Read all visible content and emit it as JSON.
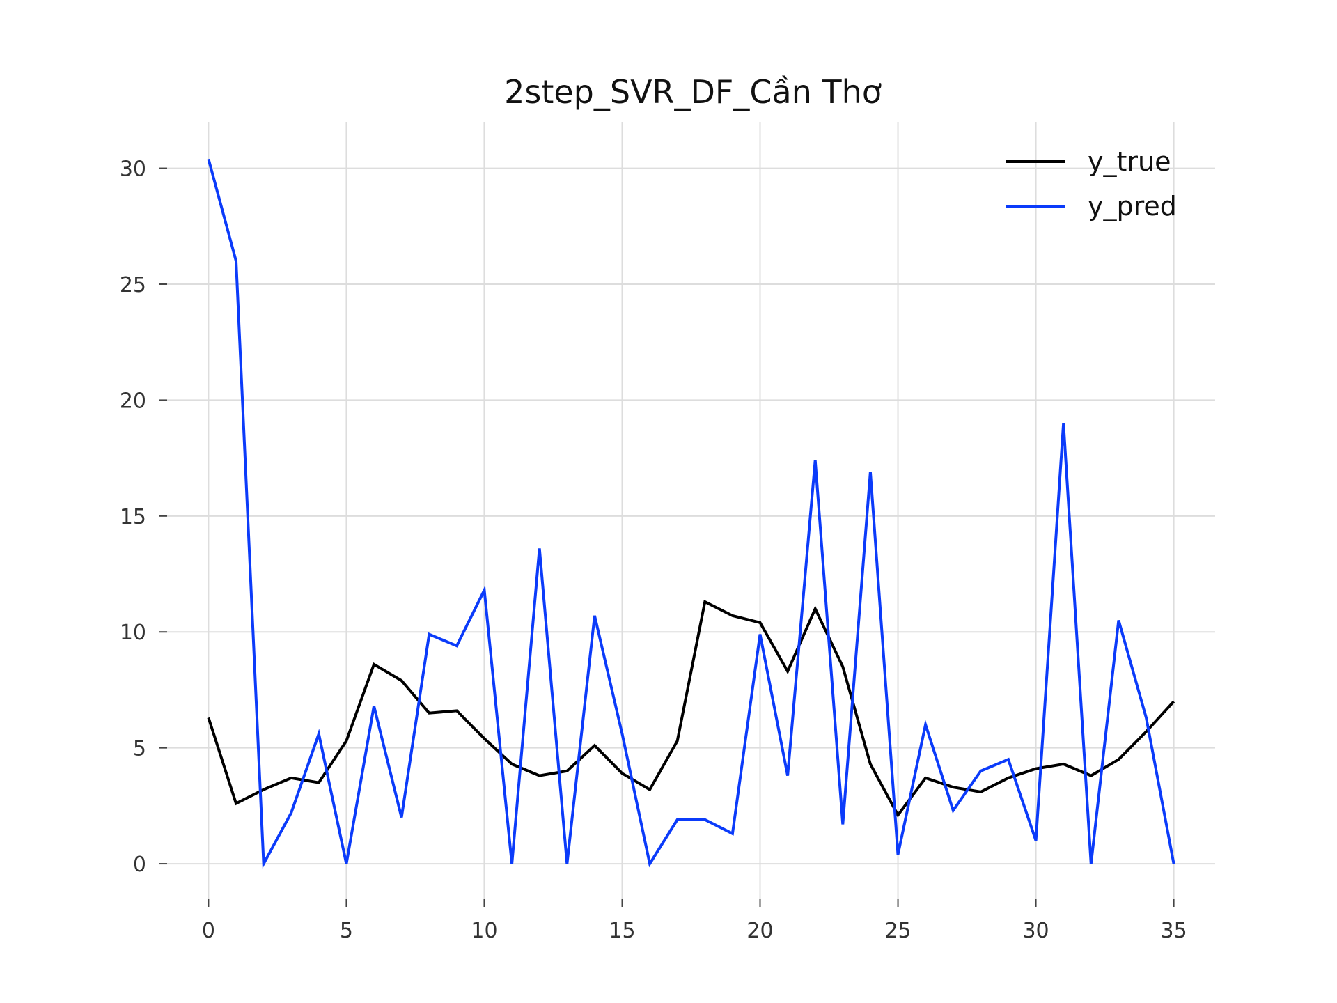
{
  "chart_data": {
    "type": "line",
    "title": "2step_SVR_DF_Cần Thơ",
    "xlabel": "",
    "ylabel": "",
    "xlim": [
      -1.5,
      36.5
    ],
    "ylim": [
      -1.5,
      32
    ],
    "xticks": [
      0,
      5,
      10,
      15,
      20,
      25,
      30,
      35
    ],
    "yticks": [
      0,
      5,
      10,
      15,
      20,
      25,
      30
    ],
    "grid": true,
    "legend_position": "top-right",
    "x": [
      0,
      1,
      2,
      3,
      4,
      5,
      6,
      7,
      8,
      9,
      10,
      11,
      12,
      13,
      14,
      15,
      16,
      17,
      18,
      19,
      20,
      21,
      22,
      23,
      24,
      25,
      26,
      27,
      28,
      29,
      30,
      31,
      32,
      33,
      34,
      35
    ],
    "series": [
      {
        "name": "y_true",
        "color": "#000000",
        "values": [
          6.3,
          2.6,
          3.2,
          3.7,
          3.5,
          5.3,
          8.6,
          7.9,
          6.5,
          6.6,
          5.4,
          4.3,
          3.8,
          4.0,
          5.1,
          3.9,
          3.2,
          5.3,
          11.3,
          10.7,
          10.4,
          8.3,
          11.0,
          8.5,
          4.3,
          2.1,
          3.7,
          3.3,
          3.1,
          3.7,
          4.1,
          4.3,
          3.8,
          4.5,
          5.7,
          7.0
        ]
      },
      {
        "name": "y_pred",
        "color": "#0b3bfa",
        "values": [
          30.4,
          26.0,
          0.0,
          2.2,
          5.6,
          0.0,
          6.8,
          2.0,
          9.9,
          9.4,
          11.8,
          0.0,
          13.6,
          0.0,
          10.7,
          5.6,
          0.0,
          1.9,
          1.9,
          1.3,
          9.9,
          3.8,
          17.4,
          1.7,
          16.9,
          0.4,
          6.0,
          2.3,
          4.0,
          4.5,
          1.0,
          19.0,
          0.0,
          10.5,
          6.3,
          0.0
        ]
      }
    ]
  }
}
